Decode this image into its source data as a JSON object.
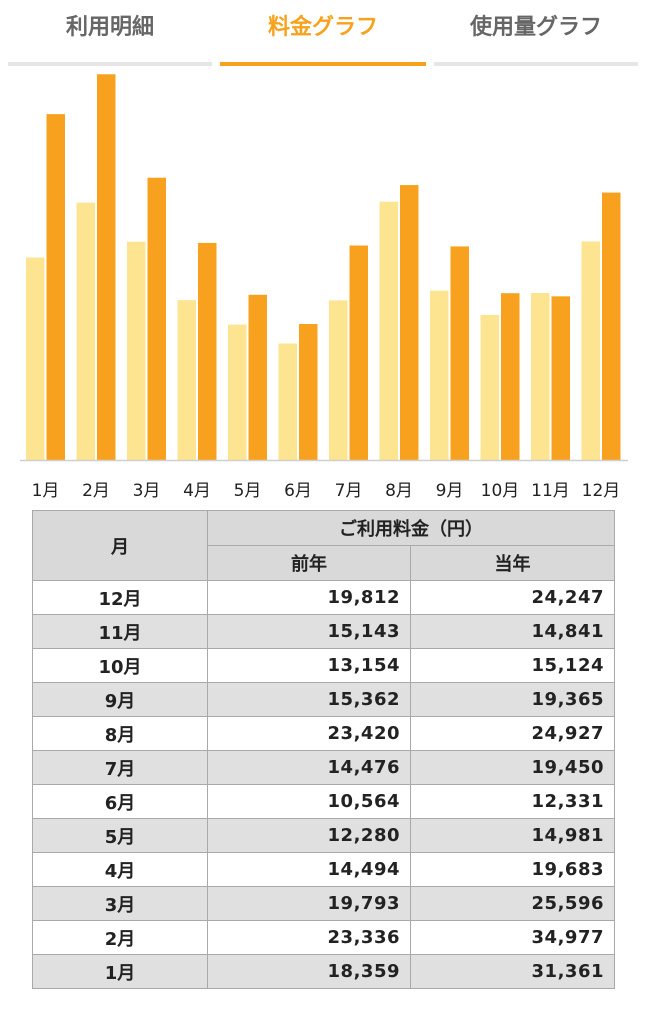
{
  "tabs": [
    {
      "label": "利用明細",
      "active": false
    },
    {
      "label": "料金グラフ",
      "active": true
    },
    {
      "label": "使用量グラフ",
      "active": false
    }
  ],
  "colors": {
    "accent": "#f7a21d",
    "previous_year_bar": "#fde490",
    "current_year_bar": "#f8a11e"
  },
  "chart_data": {
    "type": "bar",
    "categories": [
      "1月",
      "2月",
      "3月",
      "4月",
      "5月",
      "6月",
      "7月",
      "8月",
      "9月",
      "10月",
      "11月",
      "12月"
    ],
    "series": [
      {
        "values": [
          18359,
          23336,
          19793,
          14494,
          12280,
          10564,
          14476,
          23420,
          15362,
          13154,
          15143,
          19812
        ]
      },
      {
        "values": [
          31361,
          34977,
          25596,
          19683,
          14981,
          12331,
          19450,
          24927,
          19365,
          15124,
          14841,
          24247
        ]
      }
    ],
    "ylim": [
      0,
      35000
    ],
    "grid": false,
    "legend": "none"
  },
  "table": {
    "month_header": "月",
    "fee_header": "ご利用料金（円）",
    "prev_header": "前年",
    "curr_header": "当年",
    "rows": [
      {
        "month": "12月",
        "prev": "19,812",
        "curr": "24,247"
      },
      {
        "month": "11月",
        "prev": "15,143",
        "curr": "14,841"
      },
      {
        "month": "10月",
        "prev": "13,154",
        "curr": "15,124"
      },
      {
        "month": "9月",
        "prev": "15,362",
        "curr": "19,365"
      },
      {
        "month": "8月",
        "prev": "23,420",
        "curr": "24,927"
      },
      {
        "month": "7月",
        "prev": "14,476",
        "curr": "19,450"
      },
      {
        "month": "6月",
        "prev": "10,564",
        "curr": "12,331"
      },
      {
        "month": "5月",
        "prev": "12,280",
        "curr": "14,981"
      },
      {
        "month": "4月",
        "prev": "14,494",
        "curr": "19,683"
      },
      {
        "month": "3月",
        "prev": "19,793",
        "curr": "25,596"
      },
      {
        "month": "2月",
        "prev": "23,336",
        "curr": "34,977"
      },
      {
        "month": "1月",
        "prev": "18,359",
        "curr": "31,361"
      }
    ]
  }
}
